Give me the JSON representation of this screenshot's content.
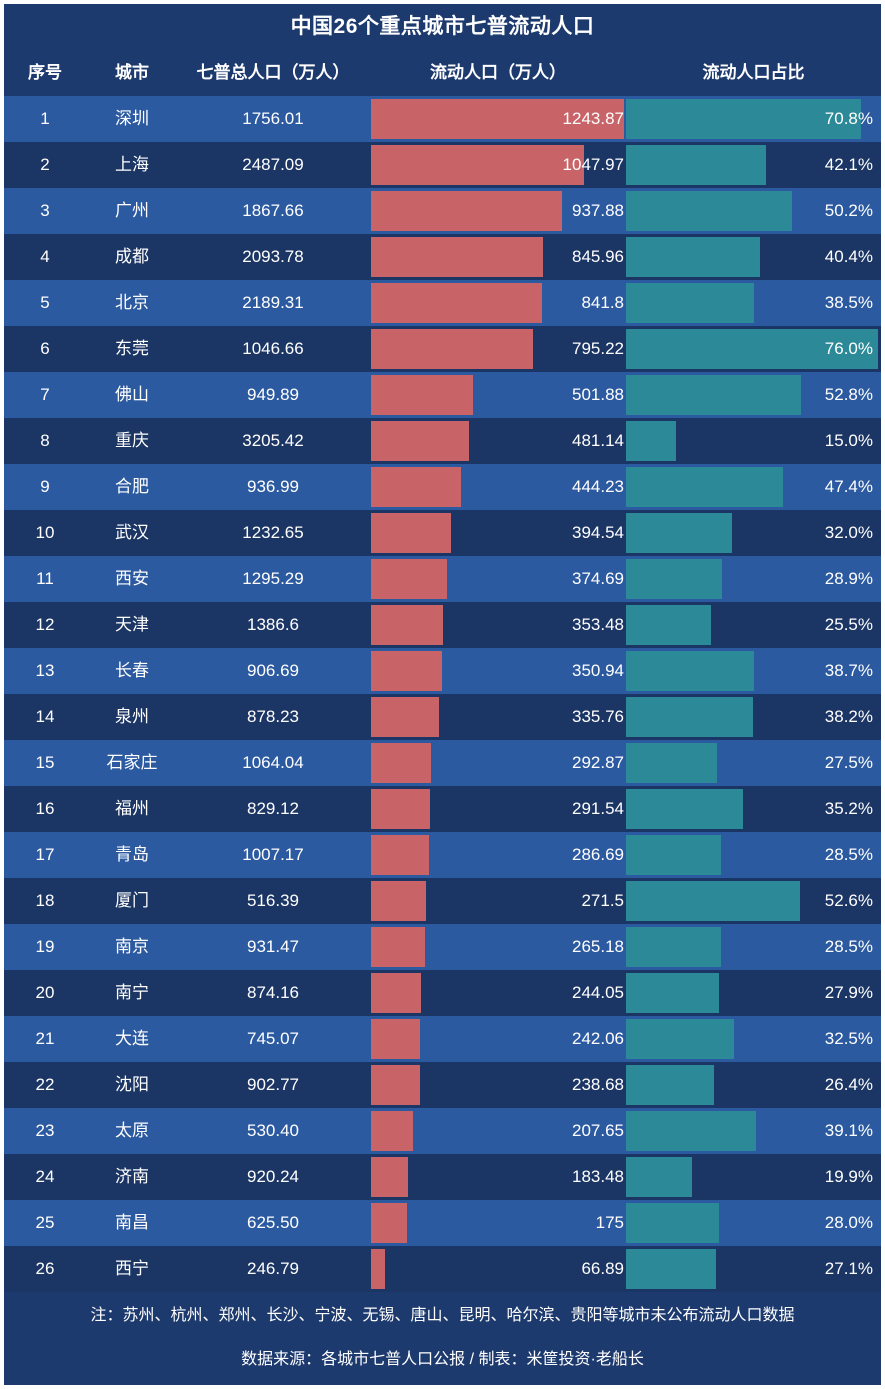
{
  "colors": {
    "background": "#1d3a6e",
    "row_light": "#2c5aa0",
    "row_dark": "#1b3564",
    "bar_floating": "#c86468",
    "bar_share": "#2c8a98",
    "text": "#ffffff"
  },
  "title": "中国26个重点城市七普流动人口",
  "headers": {
    "rank": "序号",
    "city": "城市",
    "total": "七普总人口（万人）",
    "floating": "流动人口（万人）",
    "share": "流动人口占比"
  },
  "footer": {
    "note": "注：苏州、杭州、郑州、长沙、宁波、无锡、唐山、昆明、哈尔滨、贵阳等城市未公布流动人口数据",
    "source": "数据来源：各城市七普人口公报 / 制表：米筐投资·老船长"
  },
  "chart_data": {
    "type": "table",
    "title": "中国26个重点城市七普流动人口",
    "columns": [
      "序号",
      "城市",
      "七普总人口（万人）",
      "流动人口（万人）",
      "流动人口占比"
    ],
    "floating_max": 1243.87,
    "share_max": 76.0,
    "rows": [
      {
        "rank": "1",
        "city": "深圳",
        "total": "1756.01",
        "floating": "1243.87",
        "floating_value": 1243.87,
        "share": "70.8%",
        "share_value": 70.8
      },
      {
        "rank": "2",
        "city": "上海",
        "total": "2487.09",
        "floating": "1047.97",
        "floating_value": 1047.97,
        "share": "42.1%",
        "share_value": 42.1
      },
      {
        "rank": "3",
        "city": "广州",
        "total": "1867.66",
        "floating": "937.88",
        "floating_value": 937.88,
        "share": "50.2%",
        "share_value": 50.2
      },
      {
        "rank": "4",
        "city": "成都",
        "total": "2093.78",
        "floating": "845.96",
        "floating_value": 845.96,
        "share": "40.4%",
        "share_value": 40.4
      },
      {
        "rank": "5",
        "city": "北京",
        "total": "2189.31",
        "floating": "841.8",
        "floating_value": 841.8,
        "share": "38.5%",
        "share_value": 38.5
      },
      {
        "rank": "6",
        "city": "东莞",
        "total": "1046.66",
        "floating": "795.22",
        "floating_value": 795.22,
        "share": "76.0%",
        "share_value": 76.0
      },
      {
        "rank": "7",
        "city": "佛山",
        "total": "949.89",
        "floating": "501.88",
        "floating_value": 501.88,
        "share": "52.8%",
        "share_value": 52.8
      },
      {
        "rank": "8",
        "city": "重庆",
        "total": "3205.42",
        "floating": "481.14",
        "floating_value": 481.14,
        "share": "15.0%",
        "share_value": 15.0
      },
      {
        "rank": "9",
        "city": "合肥",
        "total": "936.99",
        "floating": "444.23",
        "floating_value": 444.23,
        "share": "47.4%",
        "share_value": 47.4
      },
      {
        "rank": "10",
        "city": "武汉",
        "total": "1232.65",
        "floating": "394.54",
        "floating_value": 394.54,
        "share": "32.0%",
        "share_value": 32.0
      },
      {
        "rank": "11",
        "city": "西安",
        "total": "1295.29",
        "floating": "374.69",
        "floating_value": 374.69,
        "share": "28.9%",
        "share_value": 28.9
      },
      {
        "rank": "12",
        "city": "天津",
        "total": "1386.6",
        "floating": "353.48",
        "floating_value": 353.48,
        "share": "25.5%",
        "share_value": 25.5
      },
      {
        "rank": "13",
        "city": "长春",
        "total": "906.69",
        "floating": "350.94",
        "floating_value": 350.94,
        "share": "38.7%",
        "share_value": 38.7
      },
      {
        "rank": "14",
        "city": "泉州",
        "total": "878.23",
        "floating": "335.76",
        "floating_value": 335.76,
        "share": "38.2%",
        "share_value": 38.2
      },
      {
        "rank": "15",
        "city": "石家庄",
        "total": "1064.04",
        "floating": "292.87",
        "floating_value": 292.87,
        "share": "27.5%",
        "share_value": 27.5
      },
      {
        "rank": "16",
        "city": "福州",
        "total": "829.12",
        "floating": "291.54",
        "floating_value": 291.54,
        "share": "35.2%",
        "share_value": 35.2
      },
      {
        "rank": "17",
        "city": "青岛",
        "total": "1007.17",
        "floating": "286.69",
        "floating_value": 286.69,
        "share": "28.5%",
        "share_value": 28.5
      },
      {
        "rank": "18",
        "city": "厦门",
        "total": "516.39",
        "floating": "271.5",
        "floating_value": 271.5,
        "share": "52.6%",
        "share_value": 52.6
      },
      {
        "rank": "19",
        "city": "南京",
        "total": "931.47",
        "floating": "265.18",
        "floating_value": 265.18,
        "share": "28.5%",
        "share_value": 28.5
      },
      {
        "rank": "20",
        "city": "南宁",
        "total": "874.16",
        "floating": "244.05",
        "floating_value": 244.05,
        "share": "27.9%",
        "share_value": 27.9
      },
      {
        "rank": "21",
        "city": "大连",
        "total": "745.07",
        "floating": "242.06",
        "floating_value": 242.06,
        "share": "32.5%",
        "share_value": 32.5
      },
      {
        "rank": "22",
        "city": "沈阳",
        "total": "902.77",
        "floating": "238.68",
        "floating_value": 238.68,
        "share": "26.4%",
        "share_value": 26.4
      },
      {
        "rank": "23",
        "city": "太原",
        "total": "530.40",
        "floating": "207.65",
        "floating_value": 207.65,
        "share": "39.1%",
        "share_value": 39.1
      },
      {
        "rank": "24",
        "city": "济南",
        "total": "920.24",
        "floating": "183.48",
        "floating_value": 183.48,
        "share": "19.9%",
        "share_value": 19.9
      },
      {
        "rank": "25",
        "city": "南昌",
        "total": "625.50",
        "floating": "175",
        "floating_value": 175,
        "share": "28.0%",
        "share_value": 28.0
      },
      {
        "rank": "26",
        "city": "西宁",
        "total": "246.79",
        "floating": "66.89",
        "floating_value": 66.89,
        "share": "27.1%",
        "share_value": 27.1
      }
    ]
  }
}
